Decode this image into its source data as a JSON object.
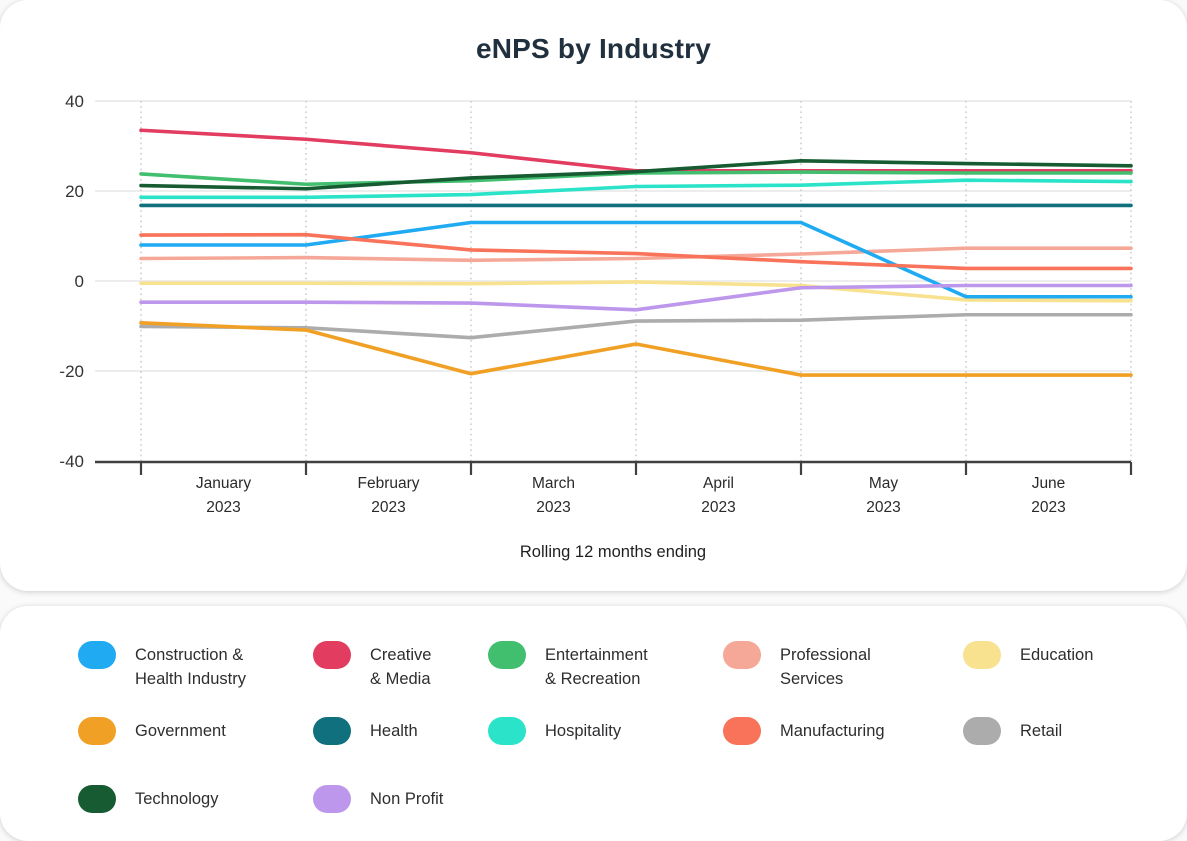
{
  "title": "eNPS by Industry",
  "x_axis_title": "Rolling 12 months ending",
  "chart_data": {
    "type": "line",
    "title": "eNPS by Industry",
    "xlabel": "Rolling 12 months ending",
    "ylabel": "",
    "ylim": [
      -40,
      40
    ],
    "y_ticks": [
      40,
      20,
      0,
      -20,
      -40
    ],
    "grid": "horizontal solid light, vertical dotted at month boundaries",
    "legend_position": "separate card below chart",
    "points_per_series": 7,
    "x_description": "7 evenly spaced vertices at month-boundary ticks; month labels centered between ticks",
    "x_labels": [
      {
        "month": "January",
        "year": "2023"
      },
      {
        "month": "February",
        "year": "2023"
      },
      {
        "month": "March",
        "year": "2023"
      },
      {
        "month": "April",
        "year": "2023"
      },
      {
        "month": "May",
        "year": "2023"
      },
      {
        "month": "June",
        "year": "2023"
      }
    ],
    "series": [
      {
        "name": "Education",
        "slug": "education",
        "color": "#F8E28F",
        "values": [
          -0.5,
          -0.5,
          -0.6,
          -0.2,
          -1.0,
          -4.2,
          -4.4
        ]
      },
      {
        "name": "Professional Services",
        "slug": "professional-services",
        "color": "#F5A897",
        "values": [
          5.0,
          5.2,
          4.6,
          5.0,
          6.0,
          7.3,
          7.3
        ]
      },
      {
        "name": "Retail",
        "slug": "retail",
        "color": "#ACACAC",
        "values": [
          -10.1,
          -10.4,
          -12.6,
          -8.9,
          -8.7,
          -7.5,
          -7.5
        ]
      },
      {
        "name": "Government",
        "slug": "government",
        "color": "#F0A125",
        "values": [
          -9.3,
          -10.9,
          -20.6,
          -14.0,
          -20.9,
          -20.9,
          -20.9
        ]
      },
      {
        "name": "Construction & Health Industry",
        "slug": "construction-health-industry",
        "color": "#1FAAF2",
        "values": [
          8.0,
          8.0,
          13.0,
          13.0,
          13.0,
          -3.5,
          -3.5
        ]
      },
      {
        "name": "Manufacturing",
        "slug": "manufacturing",
        "color": "#F8735A",
        "values": [
          10.2,
          10.3,
          6.9,
          6.1,
          4.3,
          2.8,
          2.8
        ]
      },
      {
        "name": "Creative & Media",
        "slug": "creative-media",
        "color": "#E23D61",
        "values": [
          33.5,
          31.5,
          28.5,
          24.5,
          24.5,
          24.5,
          24.5
        ]
      },
      {
        "name": "Entertainment & Recreation",
        "slug": "entertainment-recreation",
        "color": "#41BE6E",
        "values": [
          23.8,
          21.5,
          22.3,
          24.0,
          24.2,
          24.0,
          24.0
        ]
      },
      {
        "name": "Technology",
        "slug": "technology",
        "color": "#165B32",
        "values": [
          21.2,
          20.5,
          22.9,
          24.3,
          26.7,
          26.1,
          25.6
        ]
      },
      {
        "name": "Hospitality",
        "slug": "hospitality",
        "color": "#2BE3C8",
        "values": [
          18.6,
          18.6,
          19.2,
          21.0,
          21.3,
          22.4,
          22.1
        ]
      },
      {
        "name": "Health",
        "slug": "health",
        "color": "#10707E",
        "values": [
          16.8,
          16.8,
          16.8,
          16.8,
          16.8,
          16.8,
          16.8
        ]
      },
      {
        "name": "Non Profit",
        "slug": "non-profit",
        "color": "#BD97EC",
        "values": [
          -4.7,
          -4.7,
          -4.9,
          -6.4,
          -1.5,
          -1.0,
          -1.0
        ]
      }
    ]
  },
  "legend": {
    "rows": [
      [
        {
          "slug": "construction-health-industry",
          "color": "#1FAAF2",
          "lines": [
            "Construction &",
            "Health Industry"
          ]
        },
        {
          "slug": "creative-media",
          "color": "#E23D61",
          "lines": [
            "Creative",
            "& Media"
          ]
        },
        {
          "slug": "entertainment-recreation",
          "color": "#41BE6E",
          "lines": [
            "Entertainment",
            "& Recreation"
          ]
        },
        {
          "slug": "professional-services",
          "color": "#F5A897",
          "lines": [
            "Professional",
            "Services"
          ]
        },
        {
          "slug": "education",
          "color": "#F8E28F",
          "lines": [
            "Education"
          ]
        }
      ],
      [
        {
          "slug": "government",
          "color": "#F0A125",
          "lines": [
            "Government"
          ]
        },
        {
          "slug": "health",
          "color": "#10707E",
          "lines": [
            "Health"
          ]
        },
        {
          "slug": "hospitality",
          "color": "#2BE3C8",
          "lines": [
            "Hospitality"
          ]
        },
        {
          "slug": "manufacturing",
          "color": "#F8735A",
          "lines": [
            "Manufacturing"
          ]
        },
        {
          "slug": "retail",
          "color": "#ACACAC",
          "lines": [
            "Retail"
          ]
        }
      ],
      [
        {
          "slug": "technology",
          "color": "#165B32",
          "lines": [
            "Technology"
          ]
        },
        {
          "slug": "non-profit",
          "color": "#BD97EC",
          "lines": [
            "Non Profit"
          ]
        }
      ]
    ]
  }
}
